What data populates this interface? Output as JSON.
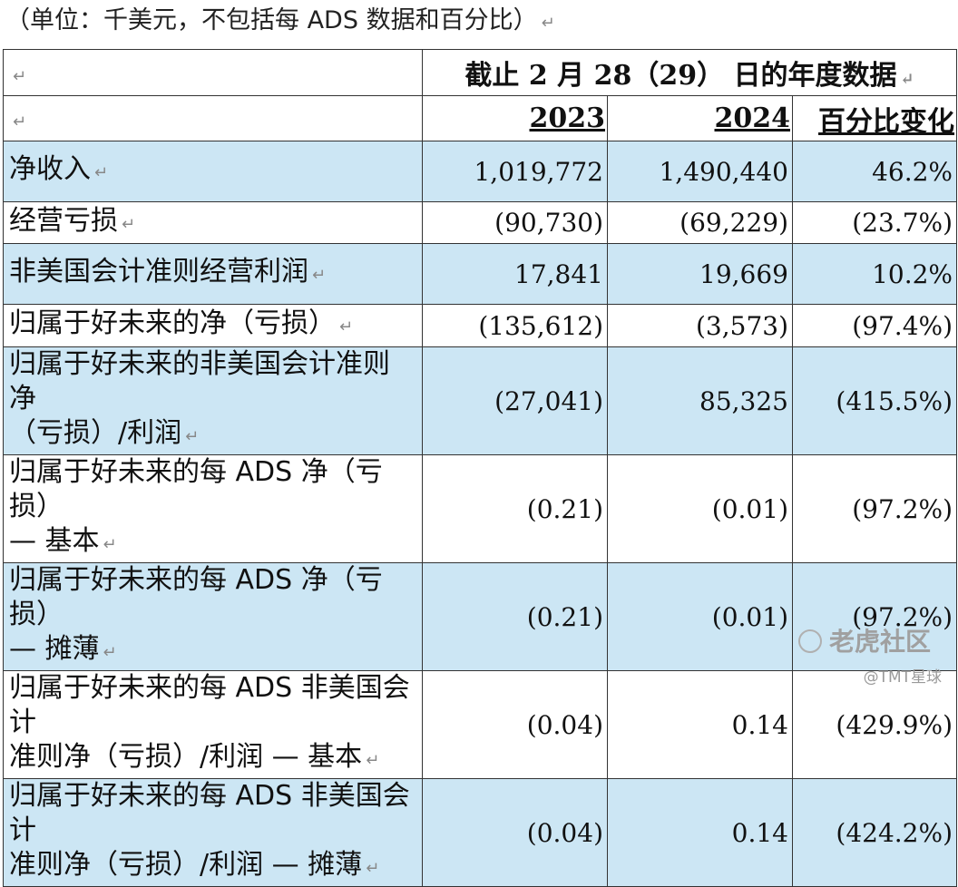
{
  "caption": "（单位：千美元，不包括每 ADS 数据和百分比）",
  "para_mark": "↵",
  "header": {
    "period": "截止 2 月 28（29） 日的年度数据",
    "year1": "2023",
    "year2": "2024",
    "change": "百分比变化"
  },
  "rows": [
    {
      "label": "净收入",
      "v2023": "1,019,772",
      "v2024": "1,490,440",
      "chg": "46.2%"
    },
    {
      "label": "经营亏损",
      "v2023": "(90,730)",
      "v2024": "(69,229)",
      "chg": "(23.7%)"
    },
    {
      "label": "非美国会计准则经营利润",
      "v2023": "17,841",
      "v2024": "19,669",
      "chg": "10.2%"
    },
    {
      "label": "归属于好未来的净（亏损）",
      "v2023": "(135,612)",
      "v2024": "(3,573)",
      "chg": "(97.4%)"
    },
    {
      "label_line1": "归属于好未来的非美国会计准则净",
      "label_line2": "（亏损）/利润",
      "v2023": "(27,041)",
      "v2024": "85,325",
      "chg": "(415.5%)"
    },
    {
      "label_line1": "归属于好未来的每 ADS 净（亏损）",
      "label_line2": "— 基本",
      "v2023": "(0.21)",
      "v2024": "(0.01)",
      "chg": "(97.2%)"
    },
    {
      "label_line1": "归属于好未来的每 ADS 净（亏损）",
      "label_line2": "— 摊薄",
      "v2023": "(0.21)",
      "v2024": "(0.01)",
      "chg": "(97.2%)"
    },
    {
      "label_line1": "归属于好未来的每 ADS 非美国会计",
      "label_line2": "准则净（亏损）/利润 — 基本",
      "v2023": "(0.04)",
      "v2024": "0.14",
      "chg": "(429.9%)"
    },
    {
      "label_line1": "归属于好未来的每 ADS 非美国会计",
      "label_line2": "准则净（亏损）/利润 — 摊薄",
      "v2023": "(0.04)",
      "v2024": "0.14",
      "chg": "(424.2%)"
    }
  ],
  "watermark": {
    "brand": "老虎社区",
    "handle": "@TMT星球"
  }
}
